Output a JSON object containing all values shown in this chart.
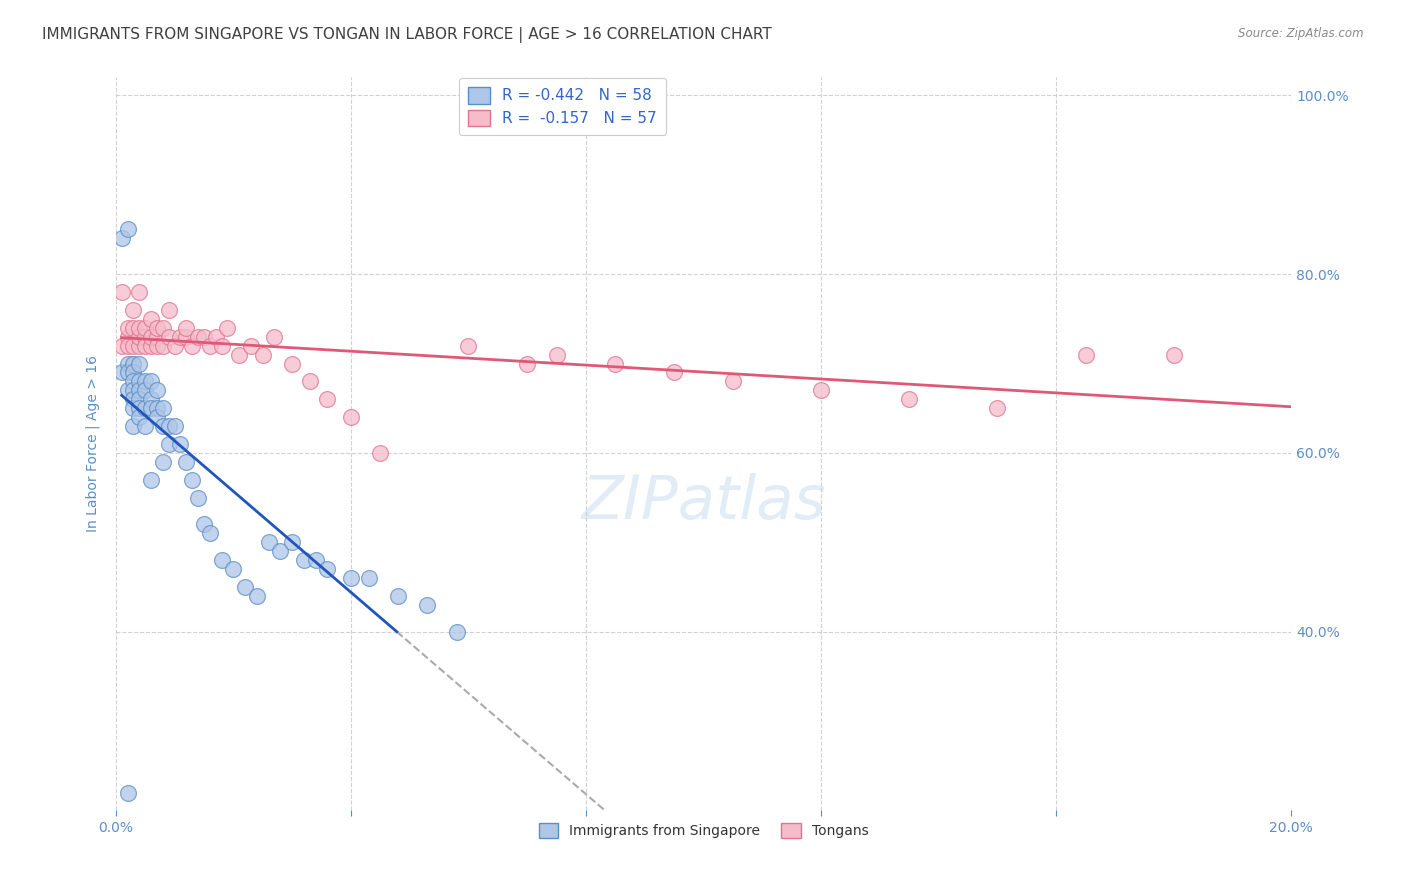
{
  "title": "IMMIGRANTS FROM SINGAPORE VS TONGAN IN LABOR FORCE | AGE > 16 CORRELATION CHART",
  "source": "Source: ZipAtlas.com",
  "ylabel": "In Labor Force | Age > 16",
  "xlim": [
    0.0,
    0.2
  ],
  "ylim": [
    0.2,
    1.02
  ],
  "xtick_vals": [
    0.0,
    0.04,
    0.08,
    0.12,
    0.16,
    0.2
  ],
  "xticklabels": [
    "0.0%",
    "",
    "",
    "",
    "",
    "20.0%"
  ],
  "ytick_vals": [
    0.4,
    0.6,
    0.8,
    1.0
  ],
  "yticklabels": [
    "40.0%",
    "60.0%",
    "80.0%",
    "100.0%"
  ],
  "watermark": "ZIPatlas",
  "sg_color": "#aec6e8",
  "sg_edge": "#5b8ec4",
  "to_color": "#f5bccb",
  "to_edge": "#e0748e",
  "singapore_x": [
    0.001,
    0.001,
    0.002,
    0.002,
    0.002,
    0.002,
    0.003,
    0.003,
    0.003,
    0.003,
    0.003,
    0.003,
    0.003,
    0.004,
    0.004,
    0.004,
    0.004,
    0.004,
    0.004,
    0.005,
    0.005,
    0.005,
    0.005,
    0.006,
    0.006,
    0.006,
    0.006,
    0.007,
    0.007,
    0.007,
    0.008,
    0.008,
    0.008,
    0.009,
    0.009,
    0.01,
    0.011,
    0.012,
    0.013,
    0.014,
    0.015,
    0.016,
    0.018,
    0.02,
    0.022,
    0.024,
    0.026,
    0.028,
    0.03,
    0.032,
    0.034,
    0.036,
    0.04,
    0.043,
    0.048,
    0.053,
    0.058,
    0.002
  ],
  "singapore_y": [
    0.69,
    0.84,
    0.7,
    0.69,
    0.67,
    0.85,
    0.7,
    0.69,
    0.68,
    0.67,
    0.66,
    0.65,
    0.63,
    0.7,
    0.68,
    0.67,
    0.66,
    0.65,
    0.64,
    0.68,
    0.67,
    0.65,
    0.63,
    0.68,
    0.66,
    0.65,
    0.57,
    0.67,
    0.65,
    0.64,
    0.65,
    0.63,
    0.59,
    0.63,
    0.61,
    0.63,
    0.61,
    0.59,
    0.57,
    0.55,
    0.52,
    0.51,
    0.48,
    0.47,
    0.45,
    0.44,
    0.5,
    0.49,
    0.5,
    0.48,
    0.48,
    0.47,
    0.46,
    0.46,
    0.44,
    0.43,
    0.4,
    0.22
  ],
  "tongan_x": [
    0.001,
    0.001,
    0.002,
    0.002,
    0.002,
    0.003,
    0.003,
    0.003,
    0.003,
    0.004,
    0.004,
    0.004,
    0.004,
    0.005,
    0.005,
    0.005,
    0.006,
    0.006,
    0.006,
    0.007,
    0.007,
    0.007,
    0.008,
    0.008,
    0.009,
    0.009,
    0.01,
    0.011,
    0.012,
    0.012,
    0.013,
    0.014,
    0.015,
    0.016,
    0.017,
    0.018,
    0.019,
    0.021,
    0.023,
    0.025,
    0.027,
    0.03,
    0.033,
    0.036,
    0.04,
    0.045,
    0.06,
    0.07,
    0.075,
    0.085,
    0.095,
    0.105,
    0.12,
    0.135,
    0.15,
    0.165,
    0.18
  ],
  "tongan_y": [
    0.72,
    0.78,
    0.73,
    0.72,
    0.74,
    0.72,
    0.7,
    0.74,
    0.76,
    0.72,
    0.73,
    0.74,
    0.78,
    0.73,
    0.72,
    0.74,
    0.72,
    0.73,
    0.75,
    0.73,
    0.72,
    0.74,
    0.72,
    0.74,
    0.73,
    0.76,
    0.72,
    0.73,
    0.73,
    0.74,
    0.72,
    0.73,
    0.73,
    0.72,
    0.73,
    0.72,
    0.74,
    0.71,
    0.72,
    0.71,
    0.73,
    0.7,
    0.68,
    0.66,
    0.64,
    0.6,
    0.72,
    0.7,
    0.71,
    0.7,
    0.69,
    0.68,
    0.67,
    0.66,
    0.65,
    0.71,
    0.71
  ],
  "axis_color": "#6699cc",
  "grid_color": "#cccccc",
  "bg_color": "#ffffff",
  "title_color": "#404040",
  "title_fontsize": 11,
  "axis_label_color": "#5b8fc4",
  "tick_label_color": "#5b8fc4"
}
